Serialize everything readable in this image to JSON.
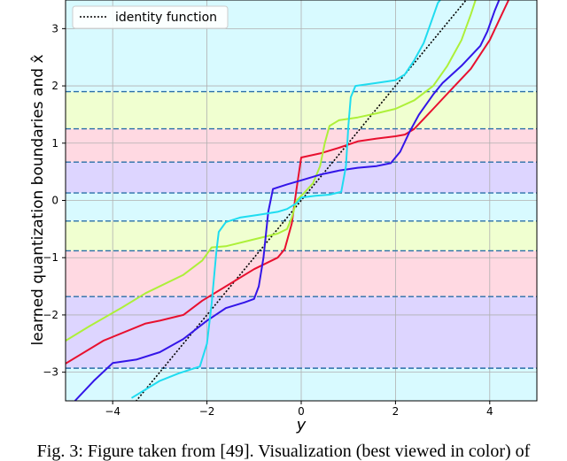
{
  "chart_data": {
    "type": "line",
    "title": "",
    "xlabel": "y",
    "ylabel": "learned quantization boundaries and x̂",
    "xlim": [
      -5,
      5
    ],
    "ylim": [
      -3.5,
      3.5
    ],
    "xticks": [
      -4,
      -2,
      0,
      2,
      4
    ],
    "yticks": [
      -3,
      -2,
      -1,
      0,
      1,
      2,
      3
    ],
    "grid": true,
    "legend": {
      "position": "top-left",
      "entries": [
        "identity function"
      ]
    },
    "boundaries": [
      -2.93,
      -1.68,
      -0.88,
      -0.36,
      0.13,
      0.67,
      1.25,
      1.9
    ],
    "bands": [
      {
        "from": -3.5,
        "to": -2.93,
        "color": "#d8faff"
      },
      {
        "from": -2.93,
        "to": -1.68,
        "color": "#ddd5ff"
      },
      {
        "from": -1.68,
        "to": -0.88,
        "color": "#ffd9e2"
      },
      {
        "from": -0.88,
        "to": -0.36,
        "color": "#f0ffd0"
      },
      {
        "from": -0.36,
        "to": 0.13,
        "color": "#d8faff"
      },
      {
        "from": 0.13,
        "to": 0.67,
        "color": "#ddd5ff"
      },
      {
        "from": 0.67,
        "to": 1.25,
        "color": "#ffd9e2"
      },
      {
        "from": 1.25,
        "to": 1.9,
        "color": "#f0ffd0"
      },
      {
        "from": 1.9,
        "to": 3.5,
        "color": "#d8faff"
      }
    ],
    "series": [
      {
        "name": "identity function",
        "color": "#000000",
        "dashed": true,
        "points": [
          [
            -3.7,
            -3.7
          ],
          [
            4.0,
            4.0
          ]
        ]
      },
      {
        "color": "#e8102f",
        "points": [
          [
            -5,
            -2.85
          ],
          [
            -4.2,
            -2.45
          ],
          [
            -3.3,
            -2.15
          ],
          [
            -3.0,
            -2.1
          ],
          [
            -2.5,
            -2.0
          ],
          [
            -2.1,
            -1.75
          ],
          [
            -1.6,
            -1.5
          ],
          [
            -1.0,
            -1.2
          ],
          [
            -0.5,
            -1.0
          ],
          [
            -0.35,
            -0.85
          ],
          [
            -0.2,
            -0.4
          ],
          [
            -0.1,
            0.2
          ],
          [
            0.0,
            0.75
          ],
          [
            0.4,
            0.82
          ],
          [
            0.8,
            0.92
          ],
          [
            1.2,
            1.03
          ],
          [
            1.6,
            1.08
          ],
          [
            2.0,
            1.12
          ],
          [
            2.2,
            1.15
          ],
          [
            2.4,
            1.25
          ],
          [
            2.8,
            1.6
          ],
          [
            3.2,
            1.95
          ],
          [
            3.6,
            2.3
          ],
          [
            4.0,
            2.8
          ],
          [
            4.4,
            3.5
          ]
        ]
      },
      {
        "color": "#adf039",
        "points": [
          [
            -5,
            -2.45
          ],
          [
            -4.5,
            -2.2
          ],
          [
            -3.8,
            -1.87
          ],
          [
            -3.3,
            -1.62
          ],
          [
            -2.5,
            -1.3
          ],
          [
            -2.1,
            -1.05
          ],
          [
            -1.9,
            -0.82
          ],
          [
            -1.6,
            -0.8
          ],
          [
            -1.0,
            -0.68
          ],
          [
            -0.5,
            -0.58
          ],
          [
            -0.3,
            -0.5
          ],
          [
            -0.2,
            -0.3
          ],
          [
            -0.1,
            0.0
          ],
          [
            0.05,
            0.12
          ],
          [
            0.25,
            0.3
          ],
          [
            0.4,
            0.6
          ],
          [
            0.5,
            1.0
          ],
          [
            0.6,
            1.3
          ],
          [
            0.8,
            1.4
          ],
          [
            1.2,
            1.45
          ],
          [
            1.6,
            1.52
          ],
          [
            2.0,
            1.6
          ],
          [
            2.4,
            1.75
          ],
          [
            2.8,
            2.0
          ],
          [
            3.1,
            2.35
          ],
          [
            3.4,
            2.8
          ],
          [
            3.6,
            3.25
          ],
          [
            3.7,
            3.5
          ]
        ]
      },
      {
        "color": "#3315e8",
        "points": [
          [
            -4.8,
            -3.5
          ],
          [
            -4.4,
            -3.15
          ],
          [
            -4.0,
            -2.84
          ],
          [
            -3.5,
            -2.78
          ],
          [
            -3.0,
            -2.65
          ],
          [
            -2.5,
            -2.42
          ],
          [
            -2.0,
            -2.1
          ],
          [
            -1.6,
            -1.88
          ],
          [
            -1.2,
            -1.78
          ],
          [
            -1.0,
            -1.72
          ],
          [
            -0.9,
            -1.5
          ],
          [
            -0.8,
            -1.0
          ],
          [
            -0.7,
            -0.2
          ],
          [
            -0.6,
            0.2
          ],
          [
            -0.3,
            0.28
          ],
          [
            0.0,
            0.35
          ],
          [
            0.4,
            0.45
          ],
          [
            0.8,
            0.52
          ],
          [
            1.2,
            0.57
          ],
          [
            1.6,
            0.6
          ],
          [
            1.9,
            0.65
          ],
          [
            2.1,
            0.85
          ],
          [
            2.3,
            1.2
          ],
          [
            2.5,
            1.5
          ],
          [
            2.8,
            1.85
          ],
          [
            3.0,
            2.05
          ],
          [
            3.4,
            2.35
          ],
          [
            3.8,
            2.7
          ],
          [
            3.95,
            2.95
          ],
          [
            4.1,
            3.3
          ],
          [
            4.2,
            3.5
          ]
        ]
      },
      {
        "color": "#1fdcf0",
        "points": [
          [
            -3.6,
            -3.45
          ],
          [
            -3.3,
            -3.3
          ],
          [
            -3.0,
            -3.15
          ],
          [
            -2.6,
            -3.02
          ],
          [
            -2.15,
            -2.9
          ],
          [
            -2.0,
            -2.5
          ],
          [
            -1.9,
            -1.8
          ],
          [
            -1.8,
            -0.9
          ],
          [
            -1.75,
            -0.55
          ],
          [
            -1.6,
            -0.38
          ],
          [
            -1.3,
            -0.3
          ],
          [
            -0.9,
            -0.25
          ],
          [
            -0.5,
            -0.2
          ],
          [
            -0.3,
            -0.15
          ],
          [
            -0.1,
            -0.05
          ],
          [
            0.0,
            0.05
          ],
          [
            0.3,
            0.08
          ],
          [
            0.6,
            0.1
          ],
          [
            0.85,
            0.15
          ],
          [
            0.95,
            0.6
          ],
          [
            1.0,
            1.3
          ],
          [
            1.05,
            1.8
          ],
          [
            1.15,
            2.0
          ],
          [
            1.6,
            2.05
          ],
          [
            2.0,
            2.1
          ],
          [
            2.2,
            2.2
          ],
          [
            2.4,
            2.45
          ],
          [
            2.6,
            2.75
          ],
          [
            2.75,
            3.1
          ],
          [
            2.9,
            3.45
          ],
          [
            2.95,
            3.5
          ]
        ]
      }
    ]
  },
  "caption": "Fig. 3: Figure taken from [49]. Visualization (best viewed in color) of"
}
